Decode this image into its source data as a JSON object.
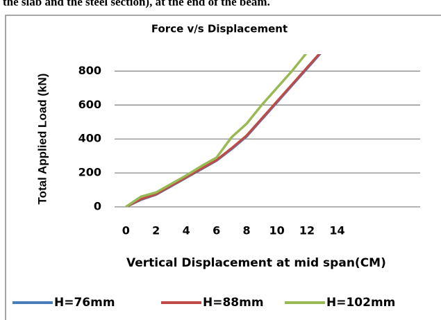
{
  "header_text": "the slab and the steel section), at the end of the beam.",
  "chart_data": {
    "type": "line",
    "title": "Force v/s Displacement",
    "x_label": "Vertical Displacement at mid span(CM)",
    "y_label": "Total Applied Load (kN)",
    "x": [
      0,
      1,
      2,
      3,
      4,
      5,
      6,
      7,
      8,
      9,
      10,
      11,
      12,
      13
    ],
    "series": [
      {
        "name": "H=76mm",
        "color": "#4a7ebb",
        "values": [
          0,
          42,
          72,
          122,
          172,
          222,
          272,
          340,
          415,
          515,
          615,
          715,
          815,
          915
        ]
      },
      {
        "name": "H=88mm",
        "color": "#be4b48",
        "values": [
          0,
          45,
          75,
          125,
          175,
          225,
          275,
          345,
          420,
          520,
          620,
          720,
          820,
          920
        ]
      },
      {
        "name": "H=102mm",
        "color": "#98b954",
        "values": [
          0,
          60,
          85,
          135,
          185,
          240,
          290,
          410,
          490,
          600,
          700,
          800,
          910,
          1010
        ]
      }
    ],
    "xlim": [
      -0.75,
      19.5
    ],
    "xticks": [
      0,
      2,
      4,
      6,
      8,
      10,
      12,
      14
    ],
    "ylim": [
      0,
      900
    ],
    "yticks": [
      0,
      200,
      400,
      600,
      800
    ],
    "grid": true,
    "legend": "bottom"
  }
}
